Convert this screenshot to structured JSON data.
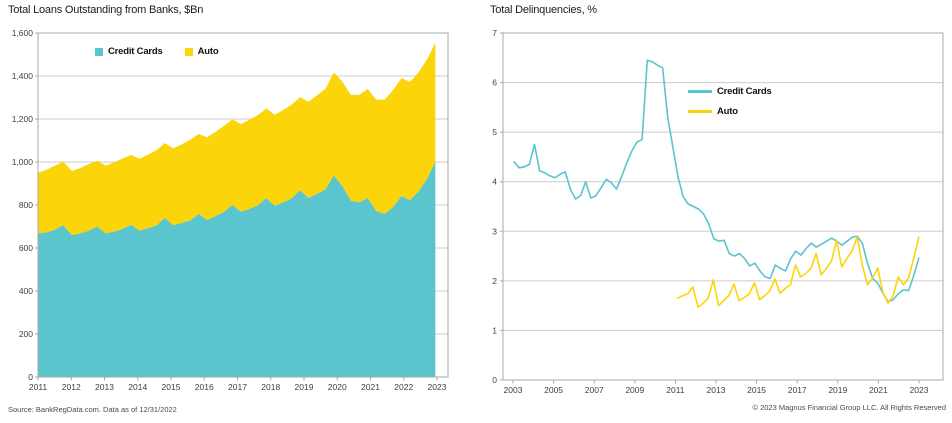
{
  "colors": {
    "credit_cards": "#5AC5CC",
    "auto": "#FCD40A",
    "grid": "#cccccc",
    "plot_border": "#a9a9a9",
    "axis_text": "#3f3f3f",
    "title_text": "#1c1c1c",
    "footnote_text": "#4a4a4a"
  },
  "chart_data": [
    {
      "type": "area",
      "stacked": true,
      "title": "Total Loans Outstanding from Banks, $Bn",
      "source_note": "Source: BankRegData.com. Data as of 12/31/2022",
      "frequency": "quarterly",
      "ylim": [
        0,
        1600
      ],
      "y_tick_labels": [
        "0",
        "200",
        "400",
        "600",
        "800",
        "1,000",
        "1,200",
        "1,400",
        "1,600"
      ],
      "x_tick_labels": [
        "2011",
        "2012",
        "2013",
        "2014",
        "2015",
        "2016",
        "2017",
        "2018",
        "2019",
        "2020",
        "2021",
        "2022",
        "2023"
      ],
      "legend_position": "top-inside",
      "grid": "horizontal",
      "series": [
        {
          "name": "Credit Cards",
          "color": "#5AC5CC",
          "x_first": 2011.0,
          "x_last": 2022.95,
          "values": [
            668,
            672,
            685,
            706,
            660,
            668,
            680,
            700,
            668,
            676,
            688,
            708,
            680,
            692,
            704,
            740,
            706,
            716,
            728,
            758,
            730,
            748,
            768,
            800,
            768,
            782,
            798,
            832,
            796,
            812,
            830,
            868,
            832,
            852,
            872,
            938,
            888,
            820,
            812,
            832,
            772,
            758,
            790,
            842,
            822,
            862,
            920,
            1002
          ]
        },
        {
          "name": "Auto",
          "color": "#FCD40A",
          "x_first": 2011.0,
          "x_last": 2022.95,
          "values": [
            282,
            292,
            298,
            296,
            298,
            304,
            310,
            306,
            315,
            322,
            328,
            325,
            335,
            342,
            350,
            348,
            358,
            366,
            375,
            372,
            385,
            392,
            400,
            398,
            408,
            414,
            420,
            417,
            424,
            430,
            437,
            434,
            448,
            458,
            468,
            478,
            486,
            492,
            500,
            508,
            518,
            532,
            545,
            548,
            550,
            554,
            556,
            552
          ]
        }
      ]
    },
    {
      "type": "line",
      "title": "Total Delinquencies, %",
      "copyright": "© 2023 Magnus Financial Group LLC. All Rights Reserved",
      "frequency": "quarterly",
      "ylim": [
        0,
        7
      ],
      "y_tick_labels": [
        "0",
        "1",
        "2",
        "3",
        "4",
        "5",
        "6",
        "7"
      ],
      "x_tick_labels": [
        "2003",
        "2005",
        "2007",
        "2009",
        "2011",
        "2013",
        "2015",
        "2017",
        "2019",
        "2021",
        "2023"
      ],
      "legend_position": "center-inside",
      "grid": "horizontal",
      "series": [
        {
          "name": "Credit Cards",
          "color": "#5AC5CC",
          "x_first": 2003.05,
          "x_last": 2022.99,
          "values": [
            4.4,
            4.28,
            4.3,
            4.35,
            4.75,
            4.22,
            4.18,
            4.12,
            4.08,
            4.15,
            4.2,
            3.85,
            3.65,
            3.72,
            4.0,
            3.67,
            3.72,
            3.88,
            4.05,
            3.98,
            3.85,
            4.1,
            4.38,
            4.62,
            4.8,
            4.85,
            6.45,
            6.42,
            6.35,
            6.3,
            5.3,
            4.7,
            4.1,
            3.7,
            3.55,
            3.5,
            3.45,
            3.35,
            3.15,
            2.85,
            2.8,
            2.82,
            2.55,
            2.5,
            2.55,
            2.45,
            2.3,
            2.36,
            2.2,
            2.08,
            2.05,
            2.32,
            2.25,
            2.2,
            2.45,
            2.6,
            2.52,
            2.65,
            2.76,
            2.68,
            2.74,
            2.8,
            2.86,
            2.8,
            2.72,
            2.8,
            2.88,
            2.9,
            2.75,
            2.35,
            2.05,
            1.95,
            1.75,
            1.58,
            1.62,
            1.74,
            1.82,
            1.8,
            2.1,
            2.46
          ]
        },
        {
          "name": "Auto",
          "color": "#FCD40A",
          "x_first": 2011.1,
          "x_last": 2022.99,
          "values": [
            1.65,
            1.7,
            1.74,
            1.88,
            1.47,
            1.55,
            1.65,
            2.02,
            1.5,
            1.6,
            1.7,
            1.94,
            1.6,
            1.66,
            1.74,
            1.96,
            1.62,
            1.7,
            1.8,
            2.04,
            1.75,
            1.85,
            1.92,
            2.32,
            2.08,
            2.15,
            2.25,
            2.55,
            2.12,
            2.25,
            2.4,
            2.82,
            2.28,
            2.45,
            2.6,
            2.88,
            2.32,
            1.92,
            2.05,
            2.26,
            1.77,
            1.55,
            1.7,
            2.08,
            1.92,
            2.05,
            2.45,
            2.88
          ]
        }
      ]
    }
  ]
}
